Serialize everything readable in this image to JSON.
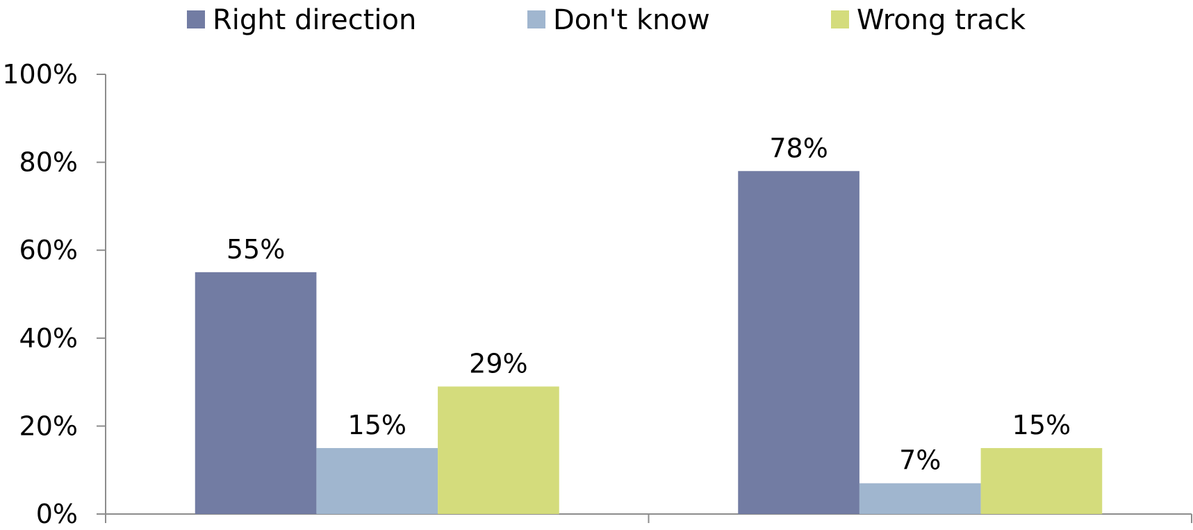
{
  "chart_data": {
    "type": "bar",
    "categories": [
      "",
      ""
    ],
    "series": [
      {
        "name": "Right direction",
        "values": [
          55,
          78
        ],
        "color": "#727ca3"
      },
      {
        "name": "Don't know",
        "values": [
          15,
          7
        ],
        "color": "#a0b6cf"
      },
      {
        "name": "Wrong track",
        "values": [
          29,
          15
        ],
        "color": "#d4dc7c"
      }
    ],
    "data_labels": [
      [
        "55%",
        "78%"
      ],
      [
        "15%",
        "7%"
      ],
      [
        "29%",
        "15%"
      ]
    ],
    "yticks": [
      {
        "value": 0,
        "label": "0%"
      },
      {
        "value": 20,
        "label": "20%"
      },
      {
        "value": 40,
        "label": "40%"
      },
      {
        "value": 60,
        "label": "60%"
      },
      {
        "value": 80,
        "label": "80%"
      },
      {
        "value": 100,
        "label": "100%"
      }
    ],
    "ylim": [
      0,
      100
    ],
    "title": "",
    "xlabel": "",
    "ylabel": "",
    "grid": false,
    "legend_position": "top"
  },
  "colors": {
    "axis": "#8c8c8c",
    "text": "#000000"
  }
}
